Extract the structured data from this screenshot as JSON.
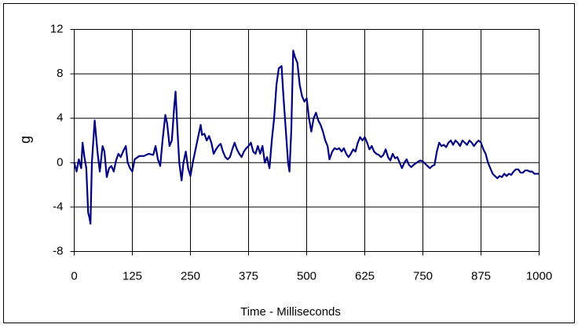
{
  "chart_data": {
    "type": "line",
    "x_label": "Time - Milliseconds",
    "y_label": "g",
    "x": [
      0,
      5,
      10,
      15,
      18,
      22,
      26,
      30,
      33,
      35,
      38,
      44,
      50,
      55,
      61,
      65,
      70,
      75,
      80,
      85,
      90,
      95,
      100,
      105,
      111,
      115,
      120,
      125,
      130,
      140,
      150,
      160,
      170,
      175,
      180,
      185,
      190,
      196,
      200,
      205,
      210,
      215,
      218,
      222,
      226,
      231,
      235,
      240,
      245,
      250,
      255,
      260,
      265,
      272,
      275,
      280,
      285,
      290,
      295,
      300,
      305,
      310,
      315,
      320,
      325,
      330,
      335,
      340,
      345,
      350,
      355,
      360,
      365,
      370,
      375,
      380,
      385,
      390,
      395,
      400,
      405,
      410,
      415,
      420,
      425,
      430,
      435,
      440,
      446,
      450,
      455,
      460,
      463,
      467,
      471,
      475,
      480,
      485,
      490,
      495,
      500,
      505,
      510,
      515,
      520,
      525,
      530,
      535,
      540,
      545,
      549,
      555,
      560,
      565,
      570,
      575,
      580,
      585,
      590,
      595,
      600,
      605,
      610,
      615,
      620,
      625,
      630,
      635,
      640,
      645,
      650,
      655,
      660,
      665,
      670,
      675,
      680,
      685,
      690,
      695,
      700,
      705,
      710,
      715,
      720,
      725,
      730,
      740,
      745,
      750,
      760,
      765,
      770,
      775,
      780,
      785,
      790,
      795,
      800,
      805,
      810,
      815,
      820,
      825,
      830,
      835,
      840,
      845,
      850,
      855,
      860,
      865,
      870,
      875,
      880,
      885,
      890,
      895,
      900,
      905,
      910,
      915,
      920,
      925,
      930,
      935,
      940,
      945,
      950,
      955,
      960,
      965,
      970,
      975,
      980,
      985,
      990,
      995,
      1000
    ],
    "values": [
      0,
      -0.8,
      0.3,
      -0.5,
      1.8,
      0.5,
      -0.5,
      -4.5,
      -5,
      -5.5,
      0,
      3.8,
      1,
      -0.8,
      1.5,
      1,
      -1.3,
      -0.5,
      -0.3,
      -0.8,
      0.2,
      0.8,
      0.5,
      1,
      1.5,
      0,
      -0.5,
      -0.8,
      0.3,
      0.6,
      0.6,
      0.8,
      0.7,
      1.5,
      0.3,
      -0.3,
      2,
      4.3,
      3.5,
      1.5,
      2,
      5,
      6.4,
      3,
      0,
      -1.6,
      0,
      1,
      -0.5,
      -1.2,
      0,
      1,
      2,
      3.4,
      2.5,
      2.6,
      2,
      2.4,
      1.8,
      0.8,
      1.2,
      1.5,
      1.7,
      1,
      0.5,
      0.3,
      0.5,
      1.2,
      1.8,
      1.2,
      0.8,
      0.5,
      1,
      1.3,
      1.5,
      1.8,
      1,
      0.8,
      1.5,
      0.8,
      1.5,
      0,
      0.5,
      -0.5,
      2,
      4,
      7,
      8.5,
      8.7,
      6,
      3,
      0,
      -0.8,
      3,
      10.1,
      9.5,
      9,
      7,
      6,
      5.5,
      5.8,
      4,
      2.8,
      4,
      4.5,
      3.8,
      3.4,
      2.8,
      2,
      1.5,
      0.3,
      1,
      1.3,
      1.2,
      1.3,
      1,
      1.3,
      0.8,
      0.5,
      0.8,
      1.2,
      1,
      1.8,
      2.3,
      2,
      2.3,
      1.8,
      1.2,
      1.5,
      1,
      0.8,
      0.7,
      0.5,
      0.7,
      1.2,
      0.5,
      0.2,
      0.8,
      0.4,
      0.5,
      0,
      -0.5,
      0,
      0.3,
      -0.2,
      -0.4,
      -0.2,
      0.1,
      0.2,
      0.1,
      -0.3,
      -0.5,
      -0.3,
      -0.2,
      1,
      1.8,
      1.5,
      1.6,
      1.4,
      1.8,
      2,
      1.6,
      2,
      1.8,
      1.5,
      2,
      1.8,
      1.6,
      2,
      1.8,
      1.5,
      1.8,
      2,
      1.8,
      1.2,
      0.8,
      0,
      -0.5,
      -1,
      -1.2,
      -1.4,
      -1.2,
      -1.3,
      -1,
      -1.2,
      -1,
      -1.1,
      -0.8,
      -0.6,
      -0.6,
      -0.9,
      -0.9,
      -0.7,
      -0.7,
      -0.8,
      -0.8,
      -1,
      -1,
      -1
    ],
    "color": "#000080",
    "xlim": [
      0,
      1000
    ],
    "xticks": [
      0,
      125,
      250,
      375,
      500,
      625,
      750,
      875,
      1000
    ],
    "ylim": [
      -8,
      12
    ],
    "yticks": [
      -8,
      -4,
      0,
      4,
      8,
      12
    ],
    "grid": true
  }
}
